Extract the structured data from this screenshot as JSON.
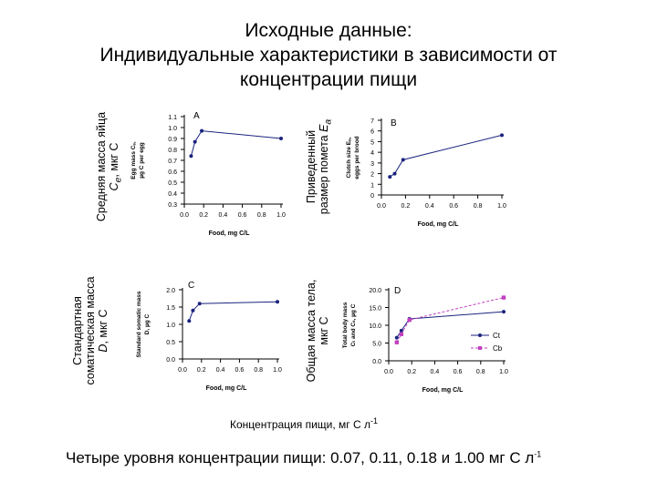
{
  "title": {
    "line1": "Исходные данные:",
    "line2": "Индивидуальные характеристики в зависимости от",
    "line3": "концентрации пищи"
  },
  "outer_labels": {
    "a_line1": "Средняя масса яйца",
    "a_line2_prefix": "C",
    "a_line2_sub": "e",
    "a_line2_suffix": ", мкг С",
    "b_line1": "Приведенный",
    "b_line2_prefix": "размер помета ",
    "b_line2_var": "E",
    "b_line2_sub": "a",
    "c_line1": "Стандартная",
    "c_line2": "соматическая масса",
    "c_line3_var": "D",
    "c_line3_suffix": ", мкг С",
    "d_line1": "Общая масса тела,",
    "d_line2": "мкг С"
  },
  "x_axis_caption": "Концентрация пищи, мг С л",
  "x_axis_caption_sup": "-1",
  "footnote": "Четыре уровня концентрации пищи: 0.07, 0.11, 0.18 и 1.00 мг С л",
  "footnote_sup": "-1",
  "colors": {
    "line": "#1a237e",
    "dashed": "#c040c0",
    "axis": "#000000"
  },
  "chart_data": [
    {
      "id": "A",
      "type": "line",
      "letter": "A",
      "title": "",
      "xlabel": "Food, mg C/L",
      "ylabel_line1": "Egg mass Cₑ,",
      "ylabel_line2": "µg C per egg",
      "xlim": [
        0,
        1.0
      ],
      "ylim": [
        0.3,
        1.1
      ],
      "x_ticks": [
        "0.0",
        "0.2",
        "0.4",
        "0.6",
        "0.8",
        "1.0"
      ],
      "y_ticks": [
        "0.3",
        "0.4",
        "0.5",
        "0.6",
        "0.7",
        "0.8",
        "0.9",
        "1.0",
        "1.1"
      ],
      "series": [
        {
          "name": "Ce",
          "x": [
            0.07,
            0.11,
            0.18,
            1.0
          ],
          "y": [
            0.74,
            0.87,
            0.97,
            0.9
          ]
        }
      ]
    },
    {
      "id": "B",
      "type": "line",
      "letter": "B",
      "title": "",
      "xlabel": "Food, mg C/L",
      "ylabel_line1": "Clutch size Eₐ,",
      "ylabel_line2": "eggs per brood",
      "xlim": [
        0,
        1.0
      ],
      "ylim": [
        0,
        7
      ],
      "x_ticks": [
        "0.0",
        "0.2",
        "0.4",
        "0.6",
        "0.8",
        "1.0"
      ],
      "y_ticks": [
        "0",
        "1",
        "2",
        "3",
        "4",
        "5",
        "6",
        "7"
      ],
      "series": [
        {
          "name": "Ea",
          "x": [
            0.07,
            0.11,
            0.18,
            1.0
          ],
          "y": [
            1.7,
            2.0,
            3.3,
            5.6
          ]
        }
      ]
    },
    {
      "id": "C",
      "type": "line",
      "letter": "C",
      "title": "",
      "xlabel": "Food, mg C/L",
      "ylabel_line1": "Standard somatic mass",
      "ylabel_line2": "D, µg C",
      "xlim": [
        0,
        1.0
      ],
      "ylim": [
        0,
        2.0
      ],
      "x_ticks": [
        "0.0",
        "0.2",
        "0.4",
        "0.6",
        "0.8",
        "1.0"
      ],
      "y_ticks": [
        "0.0",
        "0.5",
        "1.0",
        "1.5",
        "2.0"
      ],
      "series": [
        {
          "name": "D",
          "x": [
            0.07,
            0.11,
            0.18,
            1.0
          ],
          "y": [
            1.1,
            1.4,
            1.6,
            1.65
          ]
        }
      ]
    },
    {
      "id": "D",
      "type": "line",
      "letter": "D",
      "title": "",
      "xlabel": "Food, mg C/L",
      "ylabel_line1": "Total body mass",
      "ylabel_line2": "Cₜ and Cₛ, µg C",
      "xlim": [
        0,
        1.0
      ],
      "ylim": [
        0,
        20
      ],
      "x_ticks": [
        "0.0",
        "0.2",
        "0.4",
        "0.6",
        "0.8",
        "1.0"
      ],
      "y_ticks": [
        "0.0",
        "5.0",
        "10.0",
        "15.0",
        "20.0"
      ],
      "series": [
        {
          "name": "Ct",
          "legend": "Ct",
          "style": "solid",
          "x": [
            0.07,
            0.11,
            0.18,
            1.0
          ],
          "y": [
            6.5,
            8.5,
            11.8,
            13.8
          ]
        },
        {
          "name": "Cb",
          "legend": "Cb",
          "style": "dashed",
          "x": [
            0.07,
            0.11,
            0.18,
            1.0
          ],
          "y": [
            5.2,
            7.5,
            11.5,
            17.8
          ]
        }
      ]
    }
  ]
}
